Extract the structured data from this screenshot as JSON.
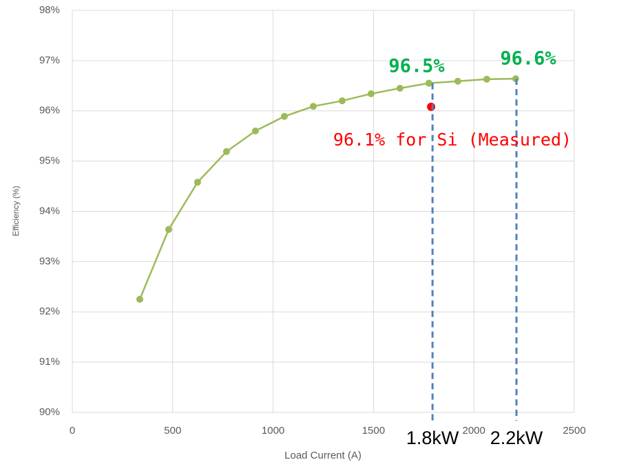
{
  "chart_data": {
    "type": "line",
    "xlabel": "Load Current (A)",
    "ylabel": "Efficiency (%)",
    "xlim": [
      0,
      2500
    ],
    "xticks": [
      0,
      500,
      1000,
      1500,
      2000,
      2500
    ],
    "ylim": [
      90,
      98
    ],
    "yticks": [
      {
        "value": 90,
        "label": "90%"
      },
      {
        "value": 91,
        "label": "91%"
      },
      {
        "value": 92,
        "label": "92%"
      },
      {
        "value": 93,
        "label": "93%"
      },
      {
        "value": 94,
        "label": "94%"
      },
      {
        "value": 95,
        "label": "95%"
      },
      {
        "value": 96,
        "label": "96%"
      },
      {
        "value": 97,
        "label": "97%"
      },
      {
        "value": 98,
        "label": "98%"
      }
    ],
    "grid": true,
    "series": [
      {
        "color": "#9bbb59",
        "line": true,
        "x": [
          336,
          480,
          624,
          768,
          912,
          1056,
          1200,
          1344,
          1488,
          1632,
          1776,
          1920,
          2064,
          2208
        ],
        "values": [
          92.25,
          93.64,
          94.58,
          95.19,
          95.6,
          95.89,
          96.09,
          96.2,
          96.34,
          96.45,
          96.55,
          96.59,
          96.63,
          96.64
        ]
      },
      {
        "color": "#ff0000",
        "line": false,
        "x": [
          1787
        ],
        "values": [
          96.08
        ]
      }
    ],
    "vlines": [
      {
        "x": 1794,
        "y": 96.55,
        "label": "1.8kW"
      },
      {
        "x": 2212,
        "y": 96.64,
        "label": "2.2kW"
      }
    ],
    "annotations": [
      {
        "text": "96.5%",
        "color": "#00b050"
      },
      {
        "text": "96.6%",
        "color": "#00b050"
      },
      {
        "text": "96.1% for Si (Measured)",
        "color": "#ff0000"
      }
    ]
  }
}
